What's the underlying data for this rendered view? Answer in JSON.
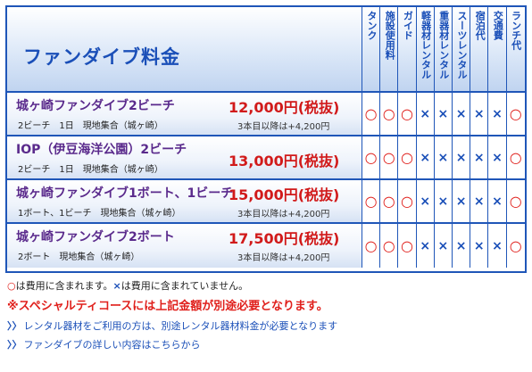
{
  "header": {
    "title": "ファンダイブ料金",
    "columns": [
      "タンク",
      "施設使用料",
      "ガイド",
      "軽器材レンタル",
      "重器材レンタル",
      "スーツレンタル",
      "宿泊代",
      "交通費",
      "ランチ代"
    ]
  },
  "courses": [
    {
      "name": "城ヶ崎ファンダイブ2ビーチ",
      "detail": "2ビーチ　1日　現地集合（城ヶ崎）",
      "price": "12,000円(税抜)",
      "extra": "3本目以降は+4,200円",
      "marks": [
        "○",
        "○",
        "○",
        "×",
        "×",
        "×",
        "×",
        "×",
        "○"
      ]
    },
    {
      "name": "IOP（伊豆海洋公園）2ビーチ",
      "detail": "2ビーチ　1日　現地集合（城ヶ崎）",
      "price": "13,000円(税抜)",
      "extra": "",
      "marks": [
        "○",
        "○",
        "○",
        "×",
        "×",
        "×",
        "×",
        "×",
        "○"
      ]
    },
    {
      "name": "城ヶ崎ファンダイブ1ボート、1ビーチ",
      "detail": "1ボート、1ビーチ　現地集合（城ヶ崎）",
      "price": "15,000円(税抜)",
      "extra": "3本目以降は+4,200円",
      "marks": [
        "○",
        "○",
        "○",
        "×",
        "×",
        "×",
        "×",
        "×",
        "○"
      ]
    },
    {
      "name": "城ヶ崎ファンダイブ2ボート",
      "detail": "2ボート　現地集合（城ヶ崎）",
      "price": "17,500円(税抜)",
      "extra": "3本目以降は+4,200円",
      "marks": [
        "○",
        "○",
        "○",
        "×",
        "×",
        "×",
        "×",
        "×",
        "○"
      ]
    }
  ],
  "notes": {
    "legend_o_mark": "○",
    "legend_o_text": "は費用に含まれます。",
    "legend_x_mark": "×",
    "legend_x_text": "は費用に含まれていません。",
    "special": "※スペシャルティコースには上記金額が別途必要となります。",
    "links": [
      "レンタル器材をご利用の方は、別途レンタル器材料金が必要となります",
      "ファンダイブの詳しい内容はこちらから"
    ],
    "link_chevron": "〉〉"
  },
  "colors": {
    "border": "#1f56b8",
    "title": "#1a4fb8",
    "course_name": "#5a2a8c",
    "price": "#d11a1a",
    "included": "#e0201c",
    "excluded": "#1a4fb8"
  }
}
